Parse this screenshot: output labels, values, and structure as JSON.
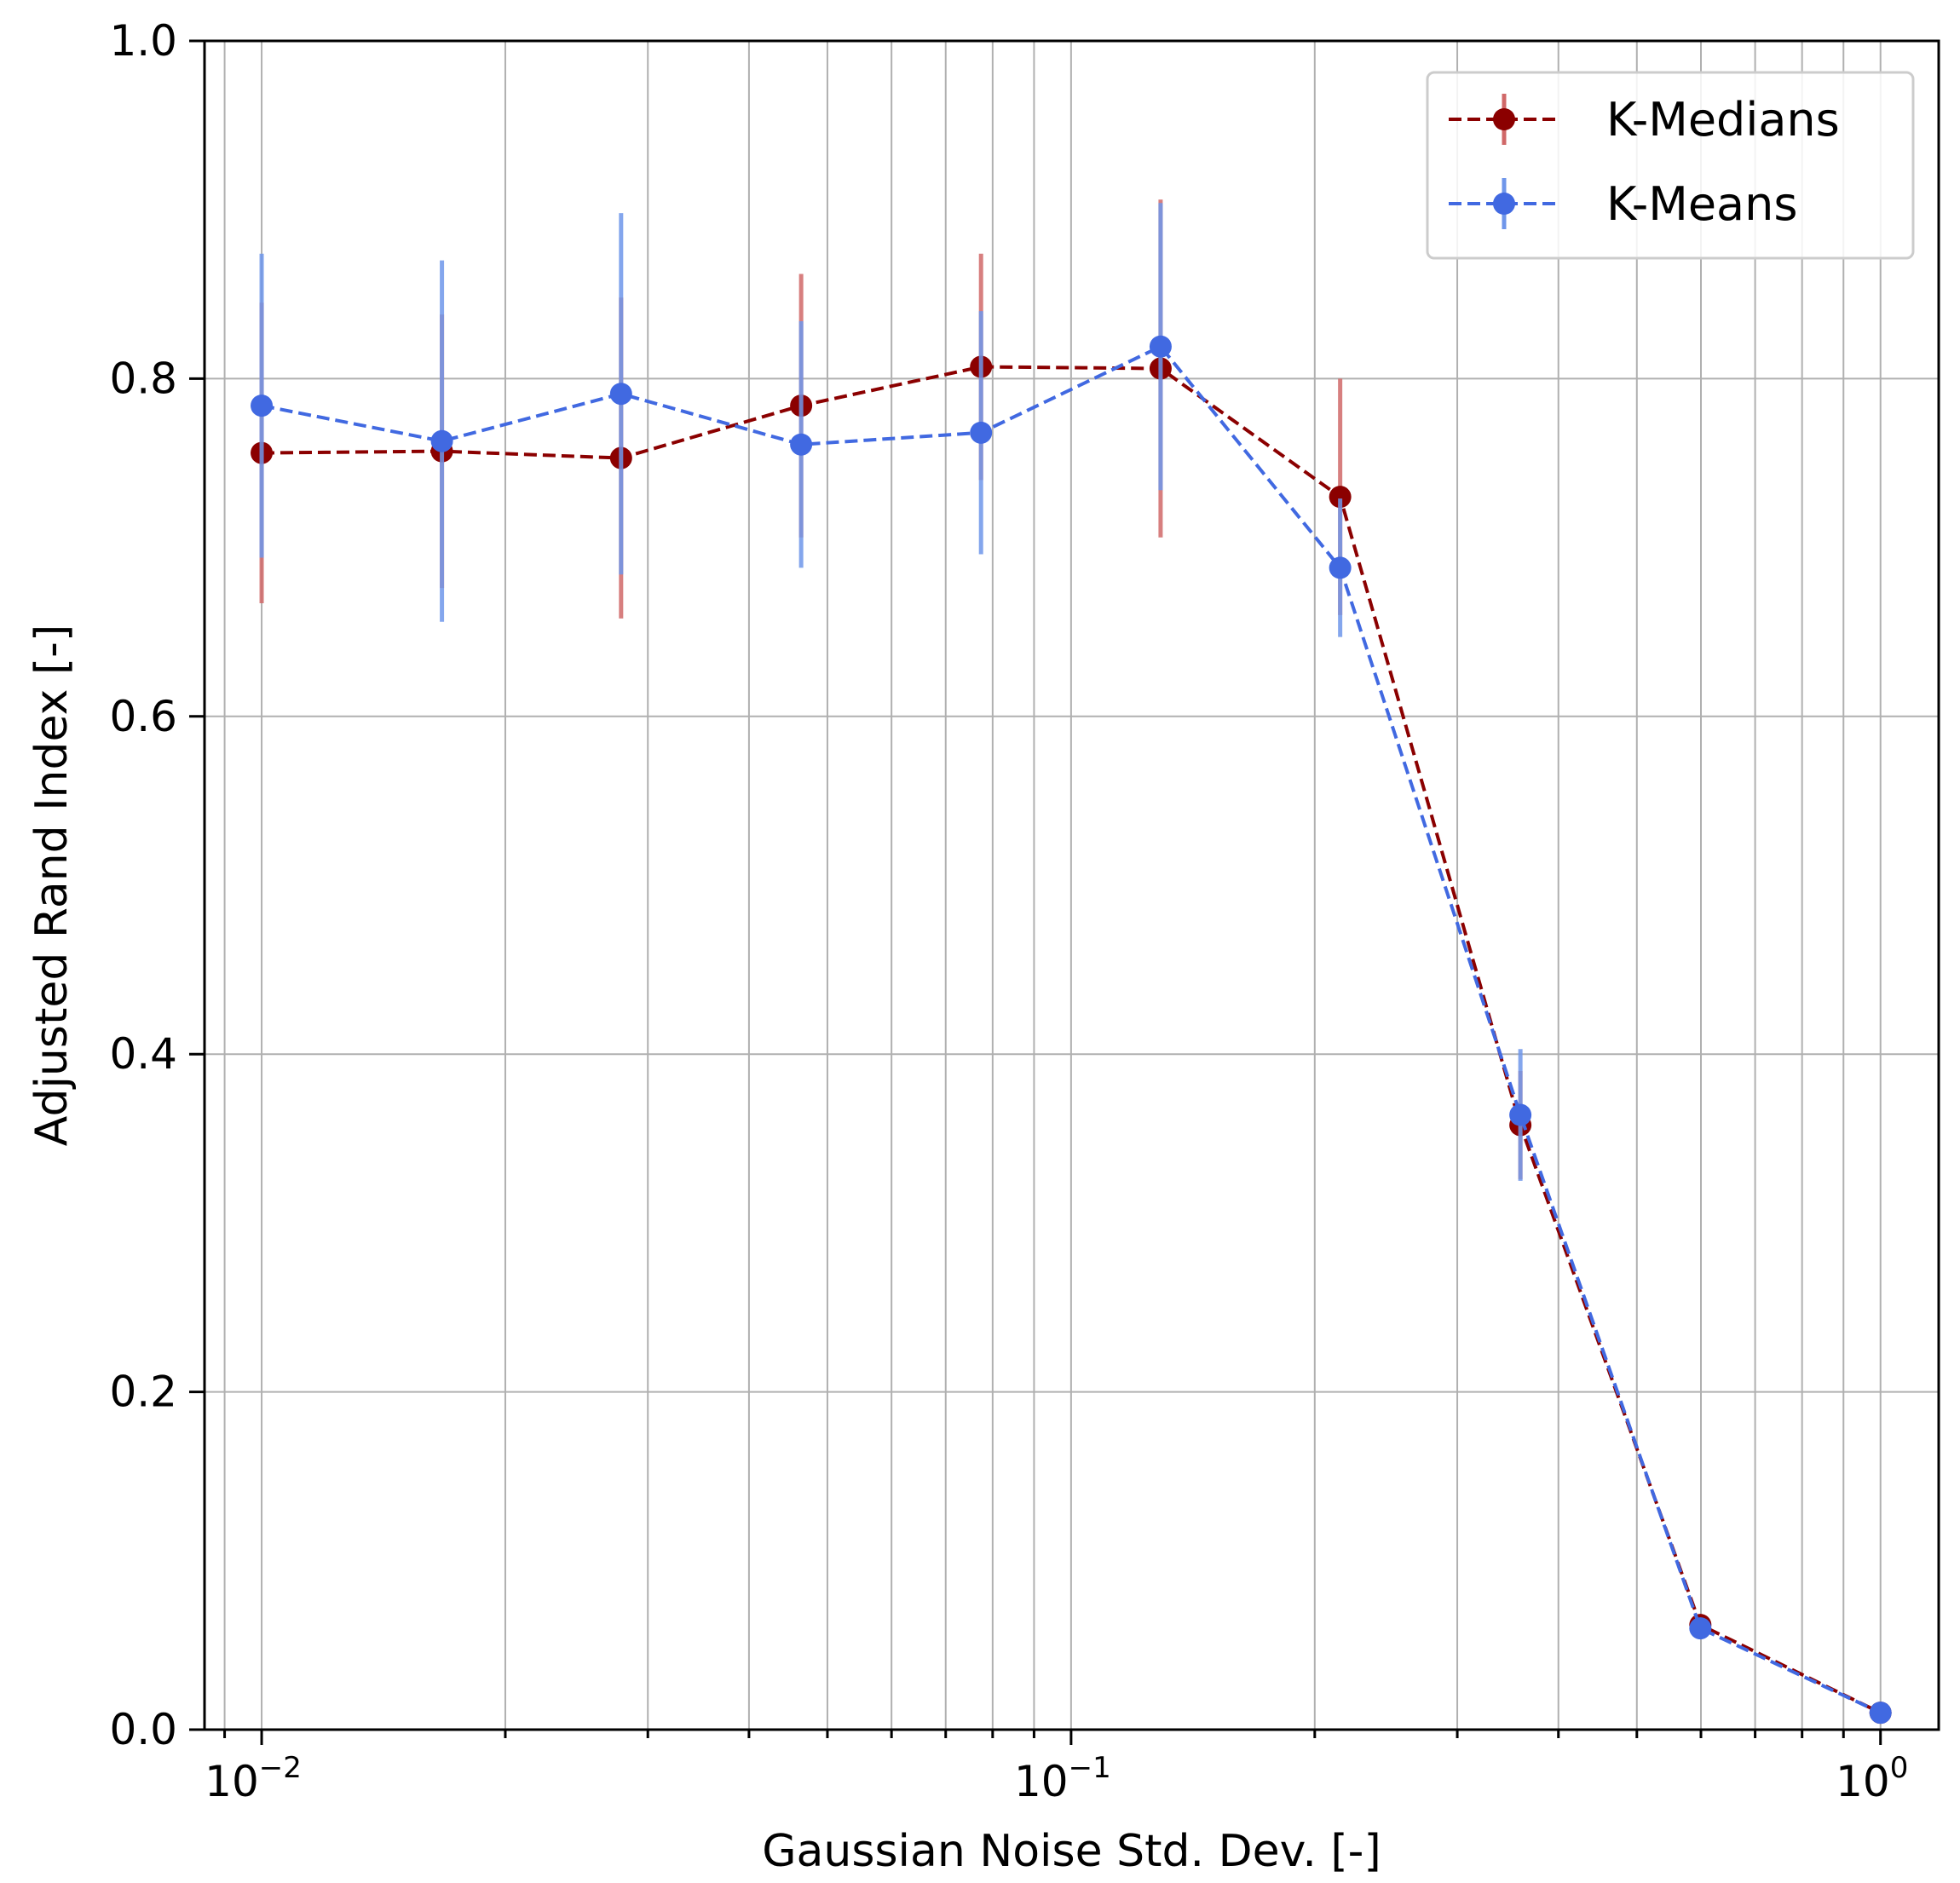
{
  "chart_data": {
    "type": "line",
    "xlabel": "Gaussian Noise Std. Dev. [-]",
    "ylabel": "Adjusted Rand Index [-]",
    "x_scale": "log",
    "xlim": [
      0.0085,
      1.18
    ],
    "ylim": [
      0.0,
      1.0
    ],
    "grid": true,
    "legend_position": "top-right",
    "x_ticks": [
      {
        "value": 0.01,
        "base": "10",
        "exp": "−2"
      },
      {
        "value": 0.1,
        "base": "10",
        "exp": "−1"
      },
      {
        "value": 1,
        "base": "10",
        "exp": "0"
      }
    ],
    "y_ticks": [
      {
        "value": 0.0,
        "label": "0.0"
      },
      {
        "value": 0.2,
        "label": "0.2"
      },
      {
        "value": 0.4,
        "label": "0.4"
      },
      {
        "value": 0.6,
        "label": "0.6"
      },
      {
        "value": 0.8,
        "label": "0.8"
      },
      {
        "value": 1.0,
        "label": "1.0"
      }
    ],
    "x": [
      0.01,
      0.0167,
      0.0278,
      0.0464,
      0.0774,
      0.129,
      0.215,
      0.359,
      0.599,
      1.0
    ],
    "series": [
      {
        "name": "K-Medians",
        "color": "#8b0000",
        "errcolor": "#d06868",
        "y": [
          0.756,
          0.757,
          0.753,
          0.784,
          0.807,
          0.806,
          0.73,
          0.358,
          0.062,
          0.01
        ],
        "err": [
          0.089,
          0.081,
          0.095,
          0.078,
          0.067,
          0.1,
          0.07,
          0.032,
          0.006,
          0.002
        ]
      },
      {
        "name": "K-Means",
        "color": "#4169e1",
        "errcolor": "#6f96ea",
        "y": [
          0.784,
          0.763,
          0.791,
          0.761,
          0.768,
          0.819,
          0.688,
          0.364,
          0.06,
          0.01
        ],
        "err": [
          0.09,
          0.107,
          0.107,
          0.073,
          0.072,
          0.085,
          0.041,
          0.039,
          0.006,
          0.002
        ]
      }
    ]
  }
}
